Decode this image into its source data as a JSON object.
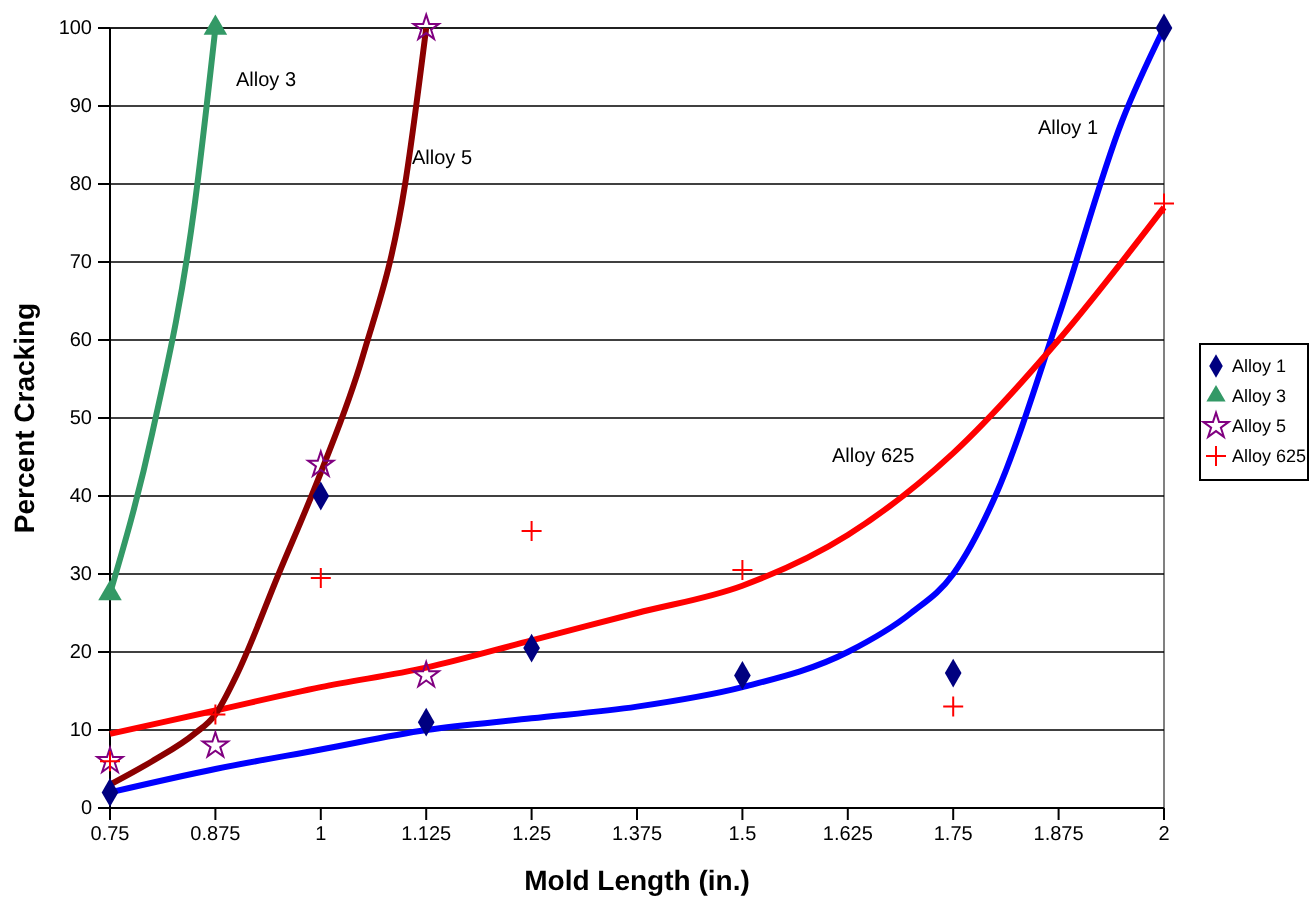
{
  "chart_data": {
    "type": "scatter",
    "xlabel": "Mold Length (in.)",
    "ylabel": "Percent Cracking",
    "xlim": [
      0.75,
      2
    ],
    "ylim": [
      0,
      100
    ],
    "xticks": [
      0.75,
      0.875,
      1,
      1.125,
      1.25,
      1.375,
      1.5,
      1.625,
      1.75,
      1.875,
      2
    ],
    "yticks": [
      0,
      10,
      20,
      30,
      40,
      50,
      60,
      70,
      80,
      90,
      100
    ],
    "grid": "y",
    "legend": "right",
    "series": [
      {
        "name": "Alloy 1",
        "marker": "diamond",
        "color": "#000080",
        "x": [
          0.75,
          1,
          1.125,
          1.25,
          1.5,
          1.75,
          2
        ],
        "values": [
          2,
          40,
          11,
          20.5,
          17,
          17.3,
          100
        ]
      },
      {
        "name": "Alloy 3",
        "marker": "triangle",
        "color": "#339966",
        "x": [
          0.75,
          0.875
        ],
        "values": [
          27.5,
          100
        ]
      },
      {
        "name": "Alloy 5",
        "marker": "star",
        "color": "#800080",
        "x": [
          0.75,
          0.875,
          1,
          1.125,
          1.125
        ],
        "values": [
          6,
          8,
          44,
          17,
          100
        ]
      },
      {
        "name": "Alloy 625",
        "marker": "cross",
        "color": "#ff0000",
        "x": [
          0.75,
          0.875,
          1,
          1.25,
          1.5,
          1.75,
          2
        ],
        "values": [
          6,
          12,
          29.5,
          35.5,
          30.5,
          13,
          77.5
        ]
      },
      {
        "type": "line",
        "marker": "none",
        "color": "#0000ff",
        "x": [
          0.75,
          0.875,
          1,
          1.125,
          1.25,
          1.375,
          1.5,
          1.625,
          1.7,
          1.75,
          1.8,
          1.875,
          1.95,
          2
        ],
        "values": [
          2,
          5,
          7.5,
          10,
          11.5,
          13,
          15.5,
          20,
          25,
          30,
          40,
          63,
          88,
          100
        ]
      },
      {
        "type": "line",
        "marker": "none",
        "color": "#ff0000",
        "x": [
          0.75,
          0.875,
          1,
          1.125,
          1.25,
          1.375,
          1.5,
          1.625,
          1.75,
          1.875,
          2
        ],
        "values": [
          9.5,
          12.5,
          15.5,
          18,
          21.5,
          25,
          28.5,
          35,
          45.5,
          60,
          77
        ]
      },
      {
        "type": "line",
        "marker": "none",
        "color": "#8b0000",
        "x": [
          0.75,
          0.8,
          0.85,
          0.875,
          0.9,
          0.95,
          1,
          1.05,
          1.1,
          1.125
        ],
        "values": [
          3,
          6,
          9.5,
          12,
          17,
          30,
          43,
          58,
          80,
          100
        ]
      },
      {
        "type": "line",
        "marker": "none",
        "color": "#339966",
        "x": [
          0.75,
          0.8,
          0.85,
          0.875
        ],
        "values": [
          27.5,
          48,
          77,
          100
        ]
      }
    ],
    "annotations": [
      "Alloy 3",
      "Alloy 5",
      "Alloy 1",
      "Alloy 625"
    ]
  }
}
